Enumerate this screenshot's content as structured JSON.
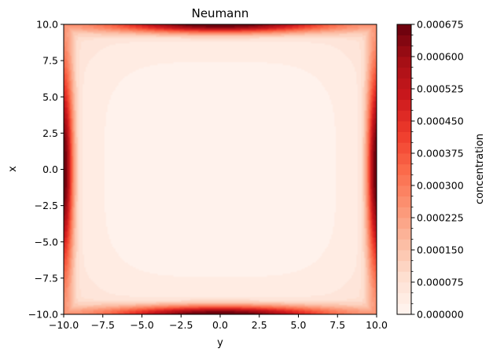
{
  "chart_data": {
    "type": "contour",
    "title": "Neumann",
    "xlabel": "y",
    "ylabel": "x",
    "xlim": [
      -10,
      10
    ],
    "ylim": [
      -10,
      10
    ],
    "x_ticks": [
      -10.0,
      -7.5,
      -5.0,
      -2.5,
      0.0,
      2.5,
      5.0,
      7.5,
      10.0
    ],
    "y_ticks": [
      -10.0,
      -7.5,
      -5.0,
      -2.5,
      0.0,
      2.5,
      5.0,
      7.5,
      10.0
    ],
    "x_tick_labels": [
      "−10.0",
      "−7.5",
      "−5.0",
      "−2.5",
      "0.0",
      "2.5",
      "5.0",
      "7.5",
      "10.0"
    ],
    "y_tick_labels": [
      "−10.0",
      "−7.5",
      "−5.0",
      "−2.5",
      "0.0",
      "2.5",
      "5.0",
      "7.5",
      "10.0"
    ],
    "colormap": "Reds",
    "colorbar": {
      "label": "concentration",
      "range": [
        0,
        0.000675
      ],
      "ticks": [
        0,
        7.5e-05,
        0.00015,
        0.000225,
        0.0003,
        0.000375,
        0.00045,
        0.000525,
        0.0006,
        0.000675
      ],
      "tick_labels": [
        "0.000000",
        "0.000075",
        "0.000150",
        "0.000225",
        "0.000300",
        "0.000375",
        "0.000450",
        "0.000525",
        "0.000600",
        "0.000675"
      ],
      "levels": 27
    },
    "field": {
      "min_value": 0.0,
      "max_value": 0.000675,
      "max_locations": [
        [
          0,
          10
        ],
        [
          0,
          -10
        ],
        [
          10,
          0
        ],
        [
          -10,
          0
        ]
      ],
      "min_region": "center"
    },
    "grid": false,
    "legend": "none"
  }
}
